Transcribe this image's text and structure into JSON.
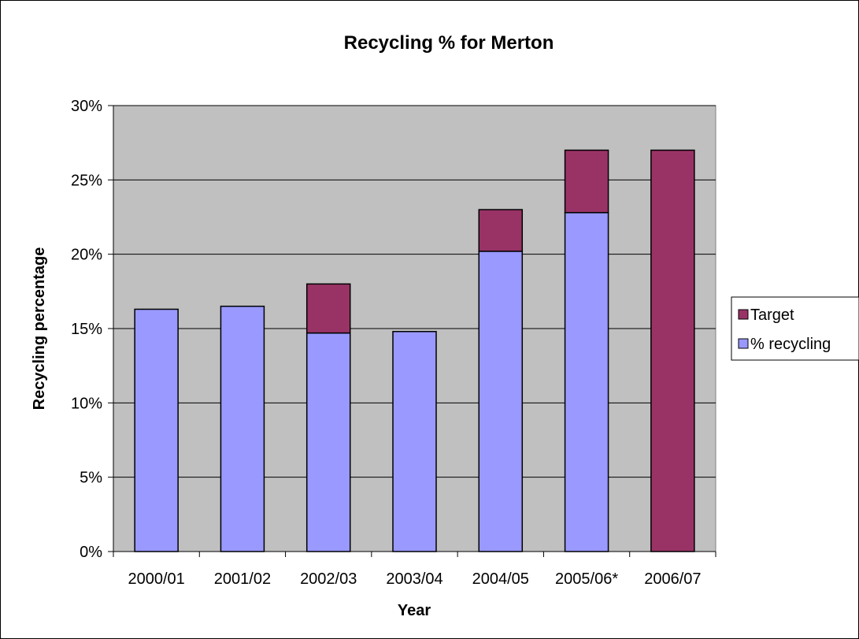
{
  "chart_data": {
    "type": "bar",
    "stacked": true,
    "title": "Recycling % for Merton",
    "xlabel": "Year",
    "ylabel": "Recycling percentage",
    "categories": [
      "2000/01",
      "2001/02",
      "2002/03",
      "2003/04",
      "2004/05",
      "2005/06*",
      "2006/07"
    ],
    "ylim": [
      0,
      30
    ],
    "y_ticks": [
      0,
      5,
      10,
      15,
      20,
      25,
      30
    ],
    "y_tick_labels": [
      "0%",
      "5%",
      "10%",
      "15%",
      "20%",
      "25%",
      "30%"
    ],
    "grid": true,
    "legend_position": "right",
    "background_color": "#c0c0c0",
    "series": [
      {
        "name": "% recycling",
        "color": "#9999ff",
        "values": [
          16.3,
          16.5,
          14.7,
          14.8,
          20.2,
          22.8,
          0
        ]
      },
      {
        "name": "Target",
        "color": "#993366",
        "values": [
          0,
          0,
          3.3,
          0,
          2.8,
          4.2,
          27
        ]
      }
    ],
    "legend_order": [
      "Target",
      "% recycling"
    ]
  }
}
